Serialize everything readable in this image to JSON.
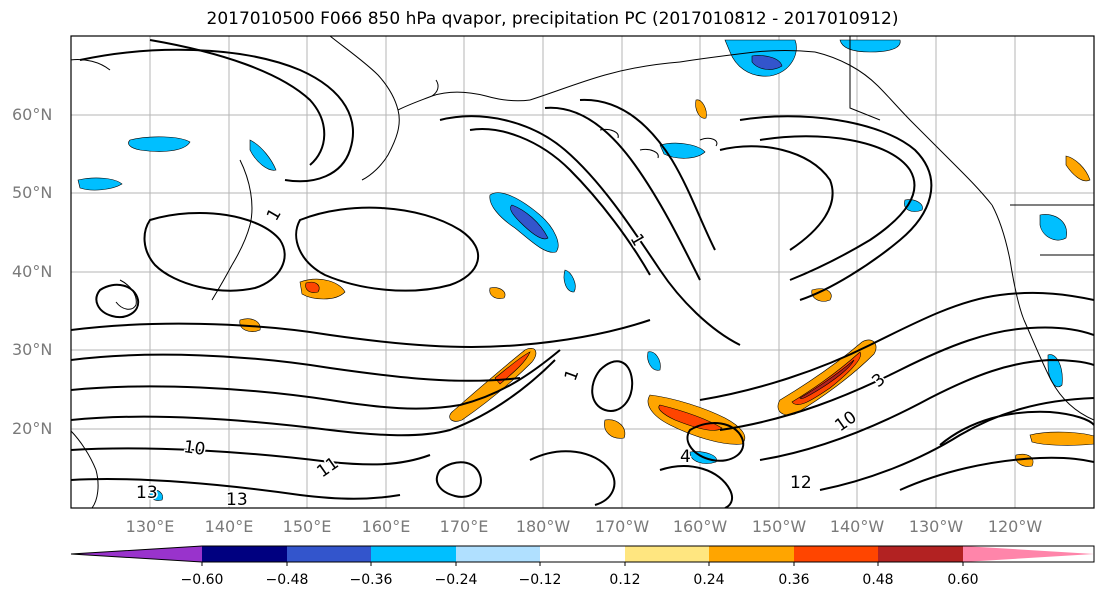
{
  "title": "2017010500 F066 850 hPa qvapor, precipitation PC (2017010812 - 2017010912)",
  "lat_labels": [
    "60°N",
    "50°N",
    "40°N",
    "30°N",
    "20°N"
  ],
  "lon_labels": [
    "130°E",
    "140°E",
    "150°E",
    "160°E",
    "170°E",
    "180°W",
    "170°W",
    "160°W",
    "150°W",
    "140°W",
    "130°W",
    "120°W"
  ],
  "contour_labels": [
    "10",
    "11",
    "13",
    "13",
    "10",
    "12",
    "4",
    "1",
    "1",
    "1",
    "3"
  ],
  "colorbar": {
    "colors": [
      "#9933cc",
      "#000080",
      "#3355cc",
      "#00bfff",
      "#b0e0ff",
      "#ffffff",
      "#ffe680",
      "#ffa500",
      "#ff4500",
      "#b22222",
      "#ff85aa"
    ],
    "tick_labels": [
      "−0.60",
      "−0.48",
      "−0.36",
      "−0.24",
      "−0.12",
      "0.12",
      "0.24",
      "0.36",
      "0.48",
      "0.60"
    ]
  }
}
